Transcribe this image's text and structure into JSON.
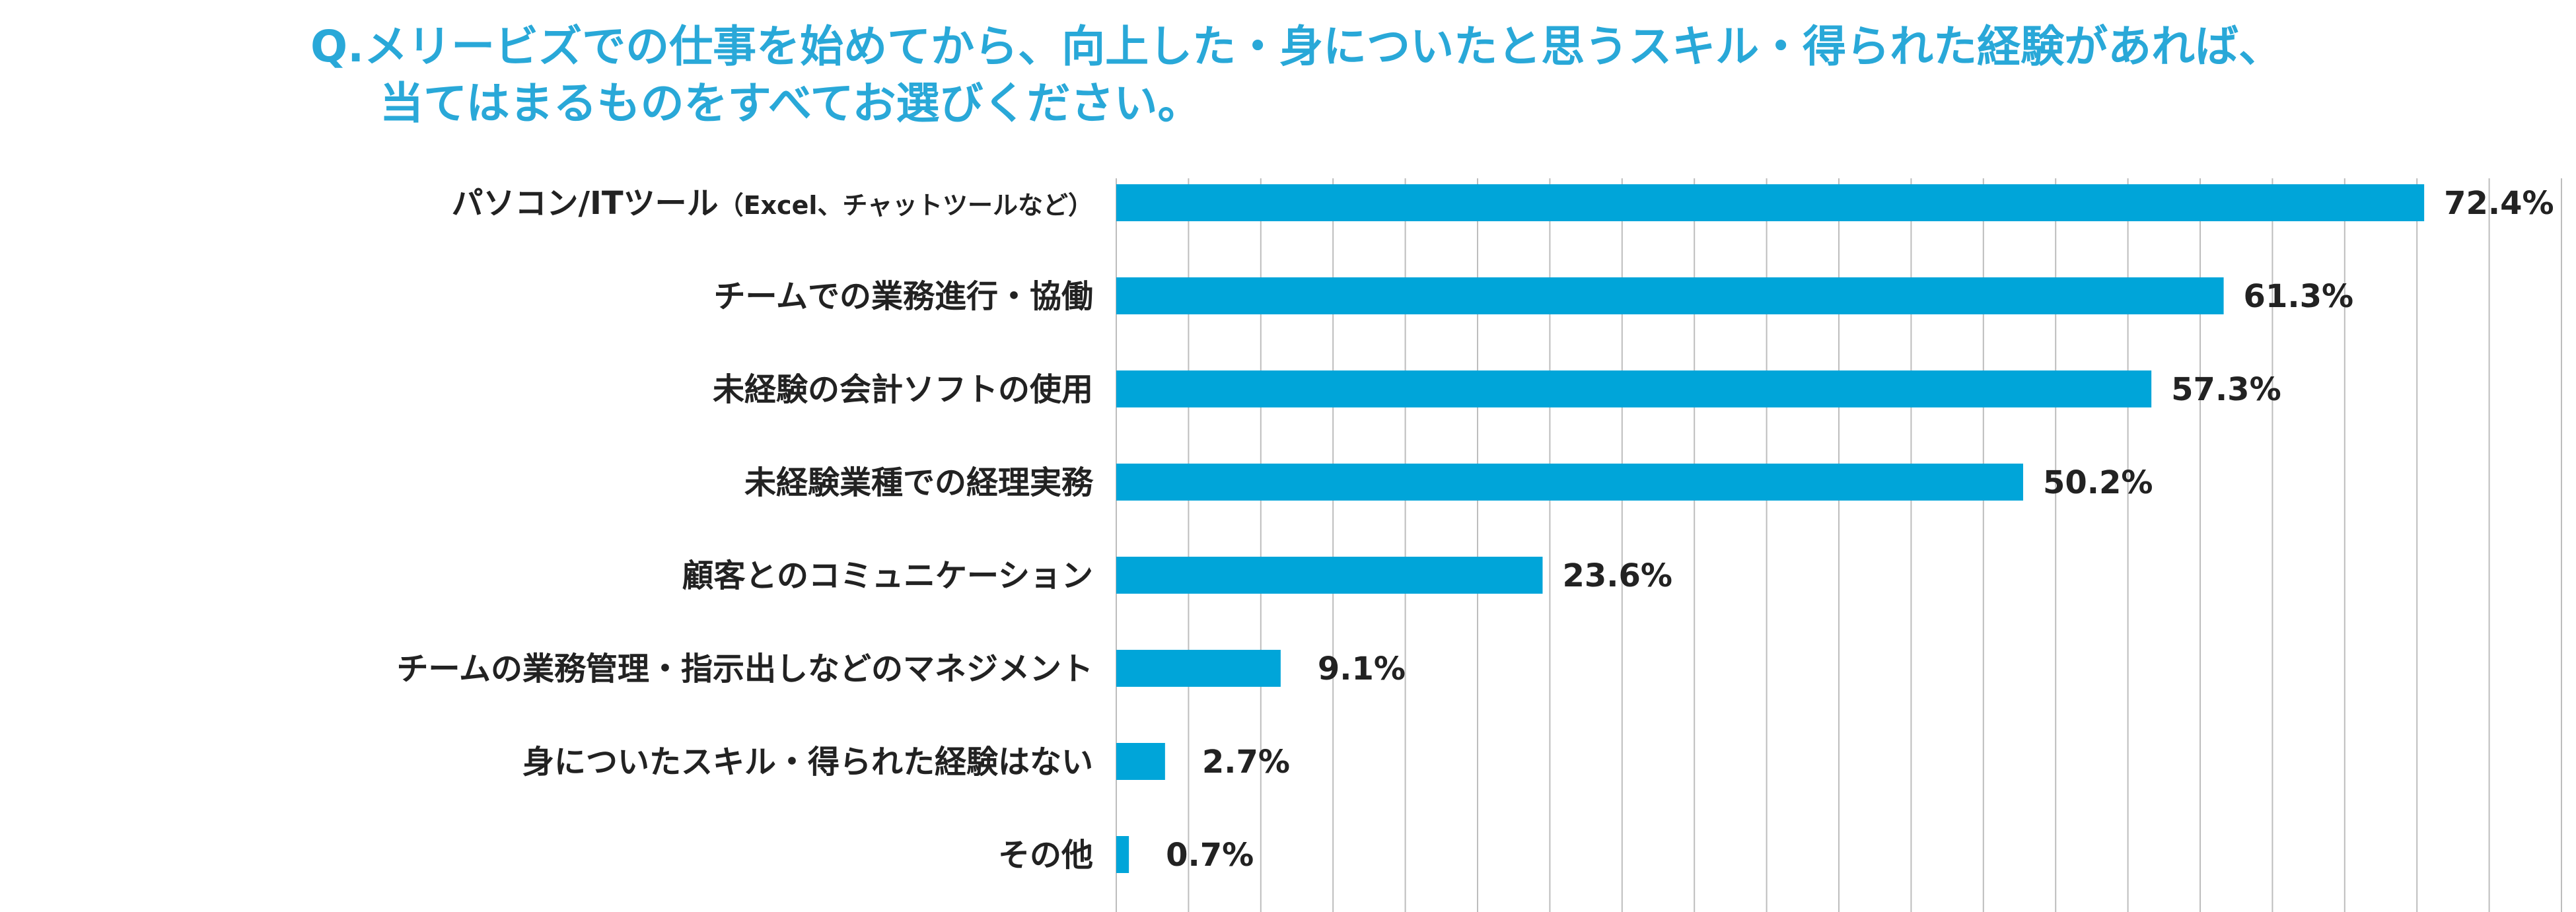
{
  "title": {
    "line1": "Q.メリービズでの仕事を始めてから、向上した・身についたと思うスキル・得られた経験があれば、",
    "line2": "当てはまるものをすべてお選びください。"
  },
  "colors": {
    "title": "#29a8d8",
    "bar": "#00a5d9",
    "grid": "#bdbdbd",
    "text": "#222222"
  },
  "chart_data": {
    "type": "bar",
    "orientation": "horizontal",
    "title": "Q.メリービズでの仕事を始めてから、向上した・身についたと思うスキル・得られた経験があれば、当てはまるものをすべてお選びください。",
    "xlabel": "",
    "ylabel": "",
    "xlim": [
      0,
      80
    ],
    "grid": true,
    "value_suffix": "%",
    "categories": [
      "パソコン/ITツール（Excel、チャットツールなど）",
      "チームでの業務進行・協働",
      "未経験の会計ソフトの使用",
      "未経験業種での経理実務",
      "顧客とのコミュニケーション",
      "チームの業務管理・指示出しなどのマネジメント",
      "身についたスキル・得られた経験はない",
      "その他"
    ],
    "label_main": [
      "パソコン/ITツール",
      "チームでの業務進行・協働",
      "未経験の会計ソフトの使用",
      "未経験業種での経理実務",
      "顧客とのコミュニケーション",
      "チームの業務管理・指示出しなどのマネジメント",
      "身についたスキル・得られた経験はない",
      "その他"
    ],
    "label_sub": [
      "（Excel、チャットツールなど）",
      "",
      "",
      "",
      "",
      "",
      "",
      ""
    ],
    "values": [
      72.4,
      61.3,
      57.3,
      50.2,
      23.6,
      9.1,
      2.7,
      0.7
    ],
    "value_labels": [
      "72.4%",
      "61.3%",
      "57.3%",
      "50.2%",
      "23.6%",
      "9.1%",
      "2.7%",
      "0.7%"
    ]
  }
}
